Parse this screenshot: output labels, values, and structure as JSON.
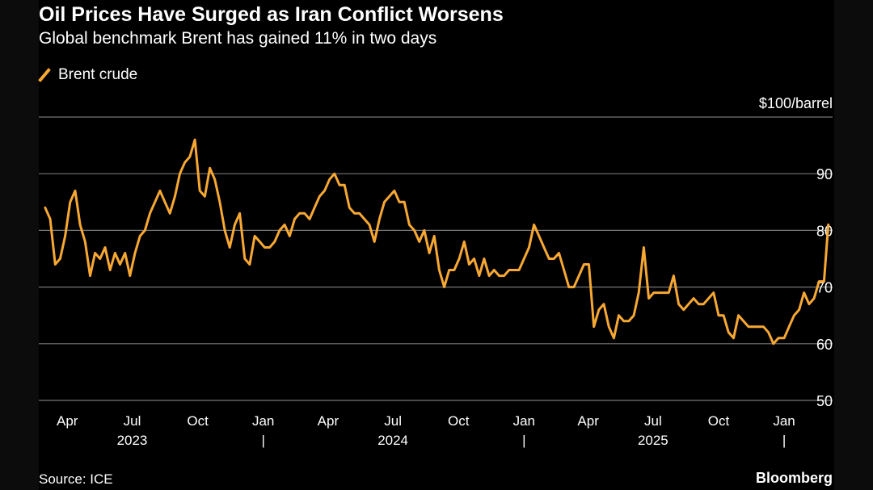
{
  "title": "Oil Prices Have Surged as Iran Conflict Worsens",
  "subtitle": "Global benchmark Brent has gained 11% in two days",
  "legend": "Brent crude",
  "unit_label": "$100/barrel",
  "source": "Source: ICE",
  "brand": "Bloomberg",
  "chart_data": {
    "type": "line",
    "series": [
      {
        "name": "Brent crude",
        "color": "#f7a833",
        "points": [
          [
            "2023-03-01",
            84
          ],
          [
            "2023-03-08",
            82
          ],
          [
            "2023-03-15",
            74
          ],
          [
            "2023-03-22",
            75
          ],
          [
            "2023-03-29",
            79
          ],
          [
            "2023-04-05",
            85
          ],
          [
            "2023-04-12",
            87
          ],
          [
            "2023-04-19",
            81
          ],
          [
            "2023-04-26",
            78
          ],
          [
            "2023-05-03",
            72
          ],
          [
            "2023-05-10",
            76
          ],
          [
            "2023-05-17",
            75
          ],
          [
            "2023-05-24",
            77
          ],
          [
            "2023-05-31",
            73
          ],
          [
            "2023-06-07",
            76
          ],
          [
            "2023-06-14",
            74
          ],
          [
            "2023-06-21",
            76
          ],
          [
            "2023-06-28",
            72
          ],
          [
            "2023-07-05",
            76
          ],
          [
            "2023-07-12",
            79
          ],
          [
            "2023-07-19",
            80
          ],
          [
            "2023-07-26",
            83
          ],
          [
            "2023-08-02",
            85
          ],
          [
            "2023-08-09",
            87
          ],
          [
            "2023-08-16",
            85
          ],
          [
            "2023-08-23",
            83
          ],
          [
            "2023-08-30",
            86
          ],
          [
            "2023-09-06",
            90
          ],
          [
            "2023-09-13",
            92
          ],
          [
            "2023-09-20",
            93
          ],
          [
            "2023-09-27",
            96
          ],
          [
            "2023-10-04",
            87
          ],
          [
            "2023-10-11",
            86
          ],
          [
            "2023-10-18",
            91
          ],
          [
            "2023-10-25",
            89
          ],
          [
            "2023-11-01",
            85
          ],
          [
            "2023-11-08",
            80
          ],
          [
            "2023-11-15",
            77
          ],
          [
            "2023-11-22",
            81
          ],
          [
            "2023-11-29",
            83
          ],
          [
            "2023-12-06",
            75
          ],
          [
            "2023-12-13",
            74
          ],
          [
            "2023-12-20",
            79
          ],
          [
            "2023-12-27",
            78
          ],
          [
            "2024-01-03",
            77
          ],
          [
            "2024-01-10",
            77
          ],
          [
            "2024-01-17",
            78
          ],
          [
            "2024-01-24",
            80
          ],
          [
            "2024-01-31",
            81
          ],
          [
            "2024-02-07",
            79
          ],
          [
            "2024-02-14",
            82
          ],
          [
            "2024-02-21",
            83
          ],
          [
            "2024-02-28",
            83
          ],
          [
            "2024-03-06",
            82
          ],
          [
            "2024-03-13",
            84
          ],
          [
            "2024-03-20",
            86
          ],
          [
            "2024-03-27",
            87
          ],
          [
            "2024-04-03",
            89
          ],
          [
            "2024-04-10",
            90
          ],
          [
            "2024-04-17",
            88
          ],
          [
            "2024-04-24",
            88
          ],
          [
            "2024-05-01",
            84
          ],
          [
            "2024-05-08",
            83
          ],
          [
            "2024-05-15",
            83
          ],
          [
            "2024-05-22",
            82
          ],
          [
            "2024-05-29",
            81
          ],
          [
            "2024-06-05",
            78
          ],
          [
            "2024-06-12",
            82
          ],
          [
            "2024-06-19",
            85
          ],
          [
            "2024-06-26",
            86
          ],
          [
            "2024-07-03",
            87
          ],
          [
            "2024-07-10",
            85
          ],
          [
            "2024-07-17",
            85
          ],
          [
            "2024-07-24",
            81
          ],
          [
            "2024-07-31",
            80
          ],
          [
            "2024-08-07",
            78
          ],
          [
            "2024-08-14",
            80
          ],
          [
            "2024-08-21",
            76
          ],
          [
            "2024-08-28",
            79
          ],
          [
            "2024-09-04",
            73
          ],
          [
            "2024-09-11",
            70
          ],
          [
            "2024-09-18",
            73
          ],
          [
            "2024-09-25",
            73
          ],
          [
            "2024-10-02",
            75
          ],
          [
            "2024-10-09",
            78
          ],
          [
            "2024-10-16",
            74
          ],
          [
            "2024-10-23",
            75
          ],
          [
            "2024-10-30",
            72
          ],
          [
            "2024-11-06",
            75
          ],
          [
            "2024-11-13",
            72
          ],
          [
            "2024-11-20",
            73
          ],
          [
            "2024-11-27",
            72
          ],
          [
            "2024-12-04",
            72
          ],
          [
            "2024-12-11",
            73
          ],
          [
            "2024-12-18",
            73
          ],
          [
            "2024-12-25",
            73
          ],
          [
            "2025-01-01",
            75
          ],
          [
            "2025-01-08",
            77
          ],
          [
            "2025-01-15",
            81
          ],
          [
            "2025-01-22",
            79
          ],
          [
            "2025-01-29",
            77
          ],
          [
            "2025-02-05",
            75
          ],
          [
            "2025-02-12",
            75
          ],
          [
            "2025-02-19",
            76
          ],
          [
            "2025-02-26",
            73
          ],
          [
            "2025-03-05",
            70
          ],
          [
            "2025-03-12",
            70
          ],
          [
            "2025-03-19",
            72
          ],
          [
            "2025-03-26",
            74
          ],
          [
            "2025-04-02",
            74
          ],
          [
            "2025-04-09",
            63
          ],
          [
            "2025-04-16",
            66
          ],
          [
            "2025-04-23",
            67
          ],
          [
            "2025-04-30",
            63
          ],
          [
            "2025-05-07",
            61
          ],
          [
            "2025-05-14",
            65
          ],
          [
            "2025-05-21",
            64
          ],
          [
            "2025-05-28",
            64
          ],
          [
            "2025-06-04",
            65
          ],
          [
            "2025-06-11",
            69
          ],
          [
            "2025-06-18",
            77
          ],
          [
            "2025-06-25",
            68
          ],
          [
            "2025-07-02",
            69
          ],
          [
            "2025-07-09",
            69
          ],
          [
            "2025-07-16",
            69
          ],
          [
            "2025-07-23",
            69
          ],
          [
            "2025-07-30",
            72
          ],
          [
            "2025-08-06",
            67
          ],
          [
            "2025-08-13",
            66
          ],
          [
            "2025-08-20",
            67
          ],
          [
            "2025-08-27",
            68
          ],
          [
            "2025-09-03",
            67
          ],
          [
            "2025-09-10",
            67
          ],
          [
            "2025-09-17",
            68
          ],
          [
            "2025-09-24",
            69
          ],
          [
            "2025-10-01",
            65
          ],
          [
            "2025-10-08",
            65
          ],
          [
            "2025-10-15",
            62
          ],
          [
            "2025-10-22",
            61
          ],
          [
            "2025-10-29",
            65
          ],
          [
            "2025-11-05",
            64
          ],
          [
            "2025-11-12",
            63
          ],
          [
            "2025-11-19",
            63
          ],
          [
            "2025-11-26",
            63
          ],
          [
            "2025-12-03",
            63
          ],
          [
            "2025-12-10",
            62
          ],
          [
            "2025-12-17",
            60
          ],
          [
            "2025-12-24",
            61
          ],
          [
            "2026-01-01",
            61
          ],
          [
            "2026-01-08",
            63
          ],
          [
            "2026-01-15",
            65
          ],
          [
            "2026-01-22",
            66
          ],
          [
            "2026-01-29",
            69
          ],
          [
            "2026-02-05",
            67
          ],
          [
            "2026-02-12",
            68
          ],
          [
            "2026-02-19",
            71
          ],
          [
            "2026-02-26",
            71
          ],
          [
            "2026-03-04",
            81
          ]
        ]
      }
    ],
    "yticks": [
      50,
      60,
      70,
      80,
      90,
      100
    ],
    "ylim": [
      50,
      100
    ],
    "xlim": [
      "2023-02-20",
      "2026-03-10"
    ],
    "month_ticks": [
      {
        "date": "2023-04-01",
        "label": "Apr"
      },
      {
        "date": "2023-07-01",
        "label": "Jul"
      },
      {
        "date": "2023-10-01",
        "label": "Oct"
      },
      {
        "date": "2024-01-01",
        "label": "Jan"
      },
      {
        "date": "2024-04-01",
        "label": "Apr"
      },
      {
        "date": "2024-07-01",
        "label": "Jul"
      },
      {
        "date": "2024-10-01",
        "label": "Oct"
      },
      {
        "date": "2025-01-01",
        "label": "Jan"
      },
      {
        "date": "2025-04-01",
        "label": "Apr"
      },
      {
        "date": "2025-07-01",
        "label": "Jul"
      },
      {
        "date": "2025-10-01",
        "label": "Oct"
      },
      {
        "date": "2026-01-01",
        "label": "Jan"
      }
    ],
    "year_labels": [
      {
        "date": "2023-07-01",
        "label": "2023"
      },
      {
        "date": "2024-07-01",
        "label": "2024"
      },
      {
        "date": "2025-07-01",
        "label": "2025"
      }
    ],
    "year_separators": [
      "2024-01-01",
      "2025-01-01",
      "2026-01-01"
    ],
    "separator_label": "|",
    "grid": true,
    "legend_position": "top-left"
  }
}
